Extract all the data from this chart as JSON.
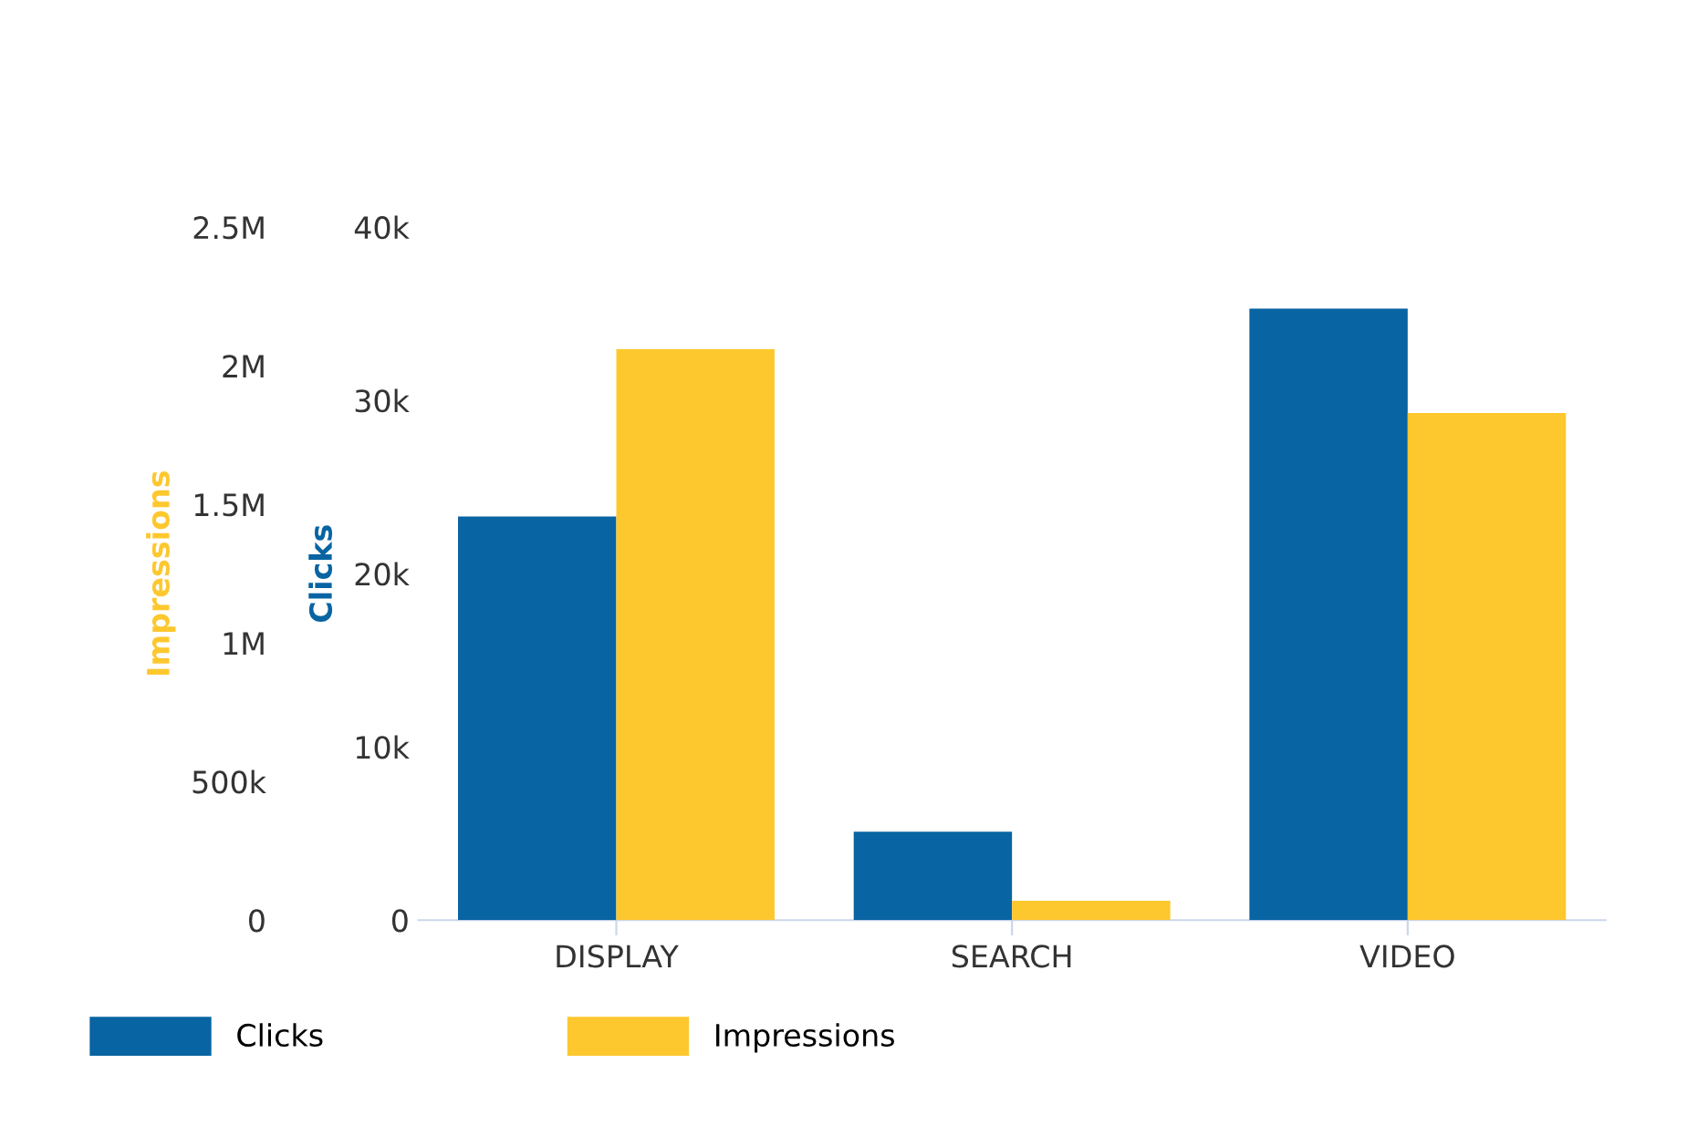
{
  "chart_data": {
    "type": "bar",
    "categories": [
      "DISPLAY",
      "SEARCH",
      "VIDEO"
    ],
    "ylabel": "Clicks",
    "y2label": "Impressions",
    "ylim": [
      0,
      40000
    ],
    "yticks": [
      {
        "value": 0,
        "label": "0"
      },
      {
        "value": 10000,
        "label": "10k"
      },
      {
        "value": 20000,
        "label": "20k"
      },
      {
        "value": 30000,
        "label": "30k"
      },
      {
        "value": 40000,
        "label": "40k"
      }
    ],
    "y2lim": [
      0,
      2500000
    ],
    "y2ticks": [
      {
        "value": 0,
        "label": "0"
      },
      {
        "value": 500000,
        "label": "500k"
      },
      {
        "value": 1000000,
        "label": "1M"
      },
      {
        "value": 1500000,
        "label": "1.5M"
      },
      {
        "value": 2000000,
        "label": "2M"
      },
      {
        "value": 2500000,
        "label": "2.5M"
      }
    ],
    "series": [
      {
        "name": "Clicks",
        "color": "#0864a2",
        "values": [
          23300,
          5100,
          35300
        ]
      },
      {
        "name": "Impressions",
        "color": "#fdc72e",
        "values": [
          2060000,
          70000,
          1830000
        ],
        "axis": "y2"
      }
    ],
    "legend": "bottom",
    "grid": false
  }
}
